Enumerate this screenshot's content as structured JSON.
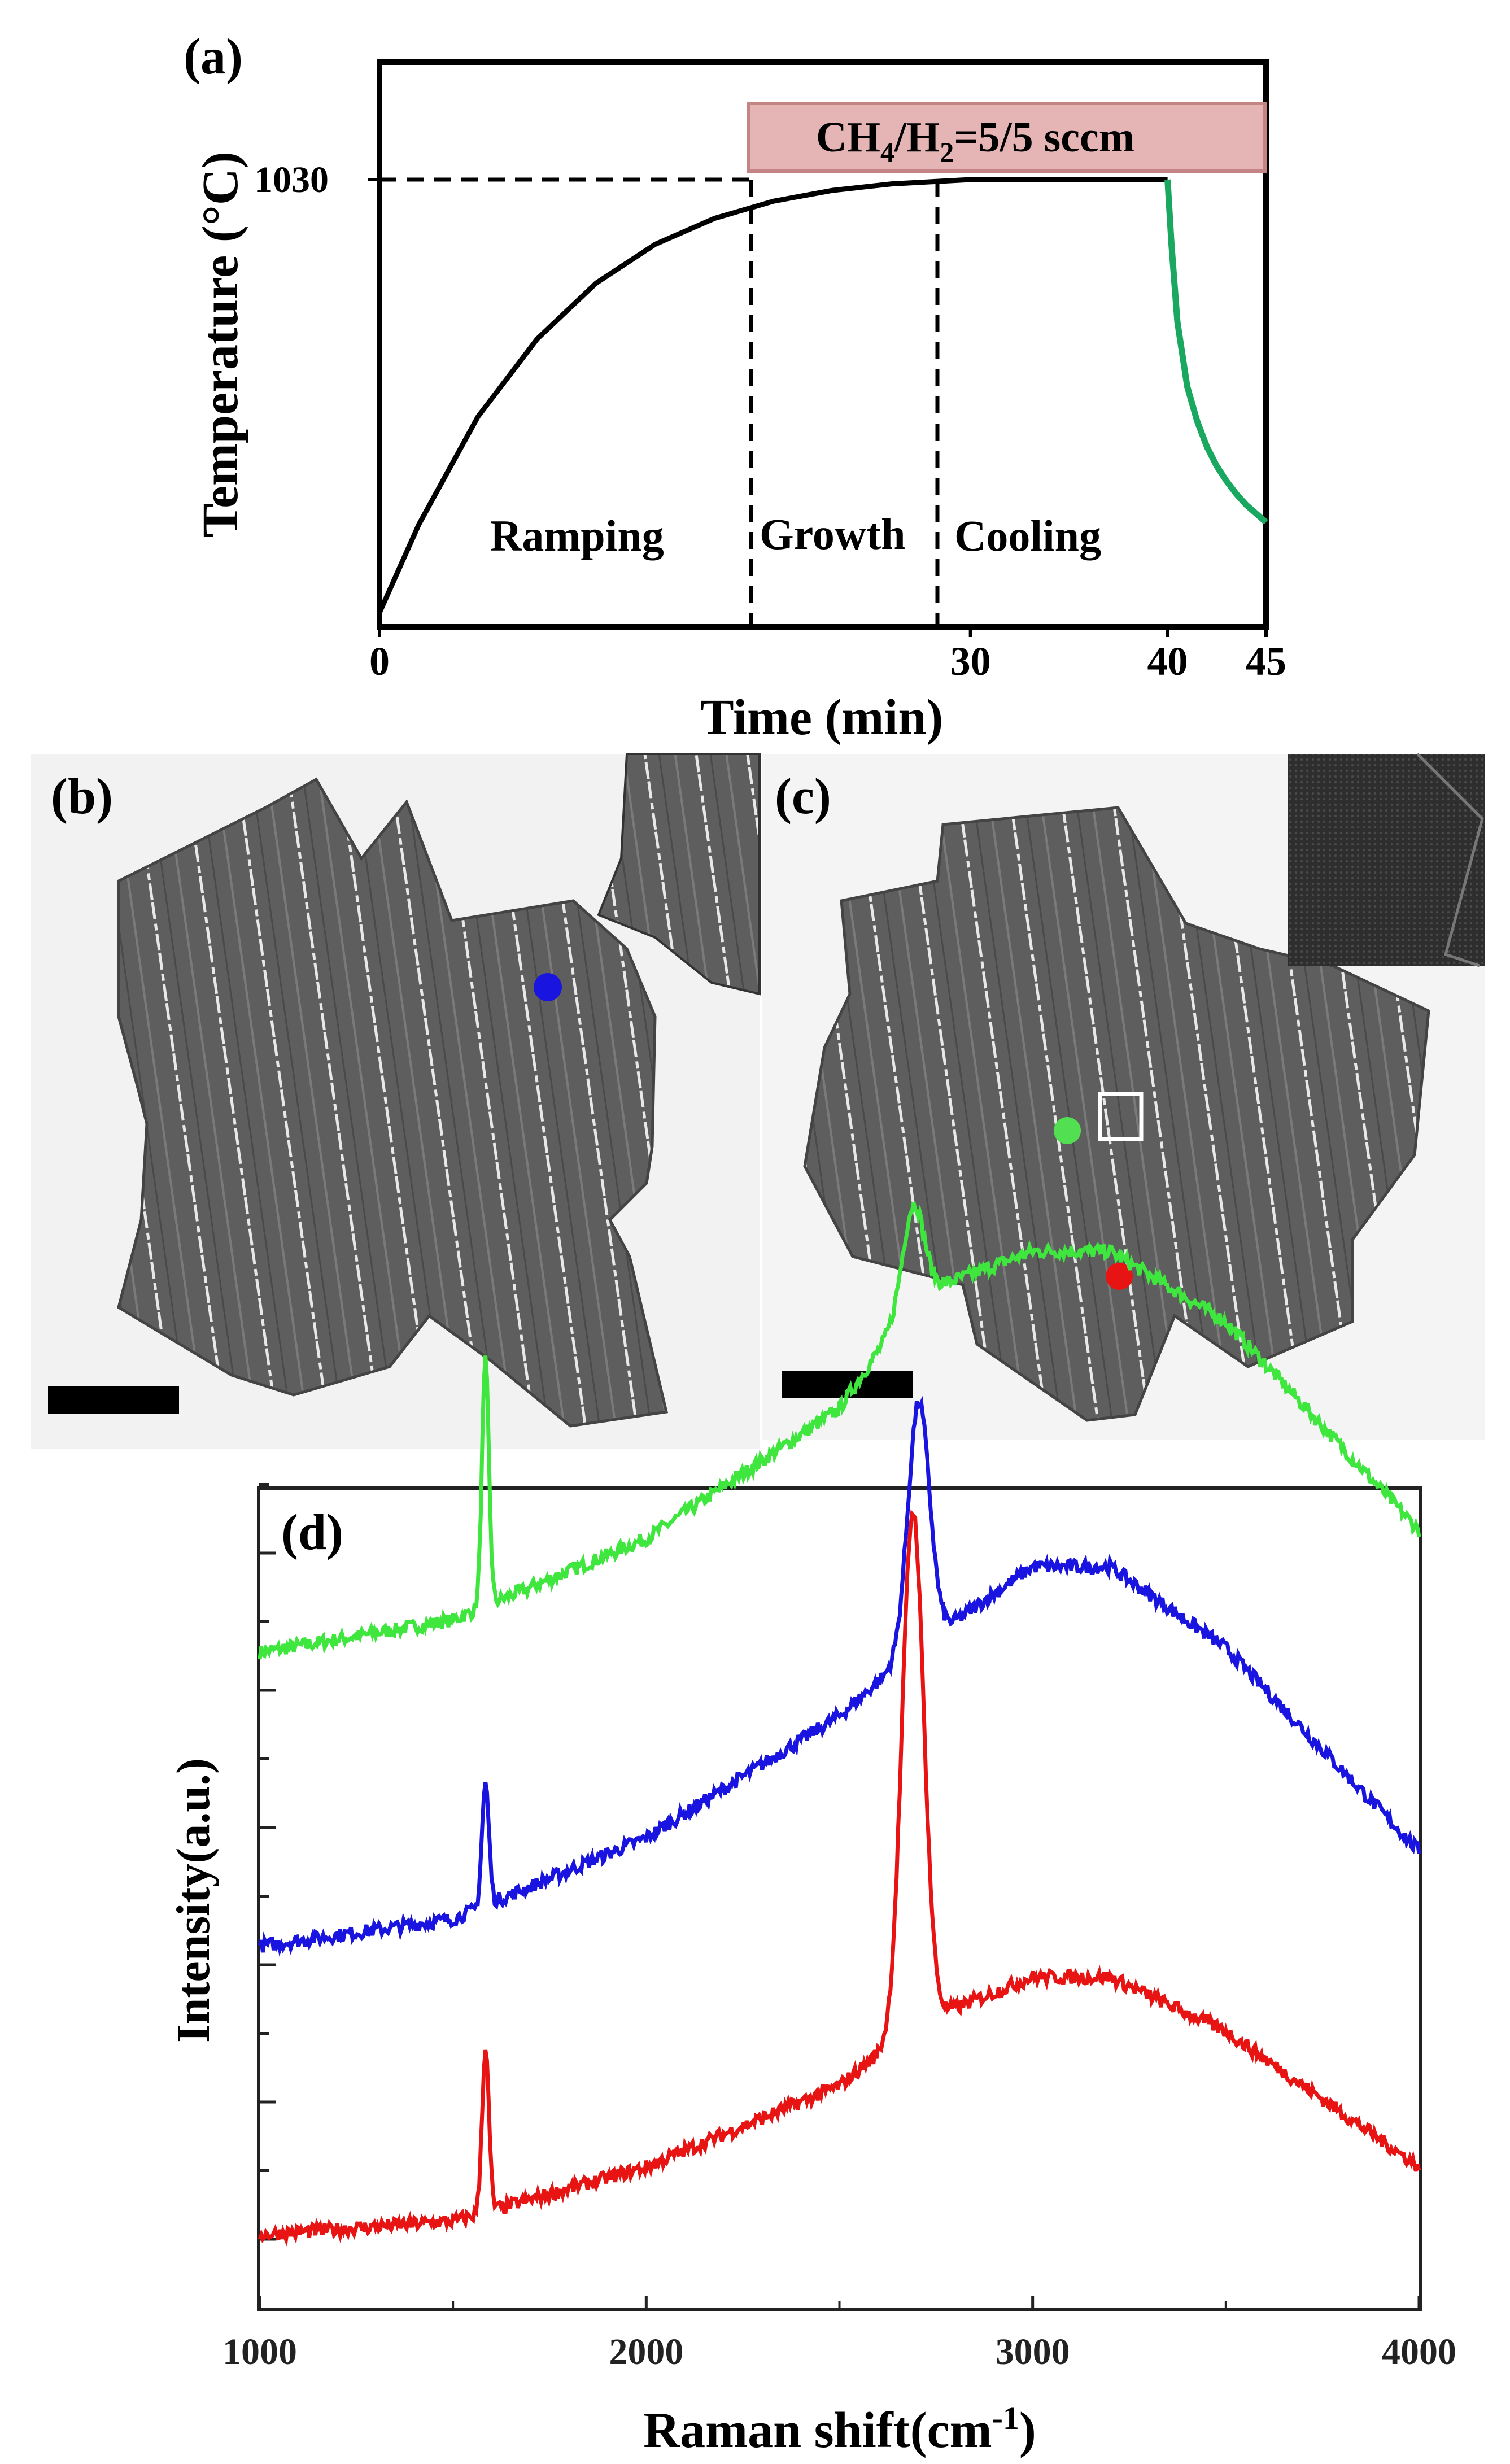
{
  "panel_a": {
    "label": "(a)",
    "gas_box": "CH4/H2=5/5 sccm",
    "gas_box_parts": {
      "a": "CH",
      "b": "4",
      "c": "/H",
      "d": "2",
      "e": "=5/5 sccm"
    },
    "temperature_label": "1030",
    "ylabel": "Temperature (°C)",
    "xlabel": "Time (min)",
    "phases": [
      "Ramping",
      "Growth",
      "Cooling"
    ],
    "xticks": [
      "0",
      "30",
      "40",
      "45"
    ]
  },
  "panel_b": {
    "label": "(b)"
  },
  "panel_c": {
    "label": "(c)"
  },
  "panel_d": {
    "label": "(d)",
    "ylabel": "Intensity(a.u.)",
    "xlabel_main": "Raman shift(cm",
    "xlabel_sup": "-1",
    "xlabel_close": ")"
  },
  "colors": {
    "ramp": "#000000",
    "cooling": "#1aa860",
    "gas_box_fill": "#e5b4b4",
    "gas_box_stroke": "#c48484",
    "green_spectrum": "#3ee63e",
    "blue_spectrum": "#1a14e0",
    "red_spectrum": "#e81414"
  },
  "chart_data": [
    {
      "type": "line",
      "title": "(a)",
      "xlabel": "Time (min)",
      "ylabel": "Temperature (°C)",
      "xlim": [
        0,
        45
      ],
      "xticks": [
        0,
        30,
        40,
        45
      ],
      "yticks": [
        1030
      ],
      "annotations": [
        "Ramping",
        "Growth",
        "Cooling",
        "CH4/H2=5/5 sccm"
      ],
      "series": [
        {
          "name": "Ramping/Growth",
          "color": "#000000",
          "x": [
            0,
            2,
            5,
            8,
            11,
            14,
            17,
            20,
            23,
            26,
            30,
            40
          ],
          "y": [
            25,
            230,
            480,
            660,
            790,
            880,
            940,
            980,
            1005,
            1020,
            1030,
            1030
          ]
        },
        {
          "name": "Cooling",
          "color": "#1aa860",
          "x": [
            40,
            40.2,
            40.5,
            41,
            41.5,
            42,
            42.5,
            43,
            43.5,
            44,
            44.5,
            45
          ],
          "y": [
            1030,
            880,
            700,
            550,
            470,
            410,
            365,
            330,
            300,
            275,
            255,
            235
          ]
        }
      ]
    },
    {
      "type": "line",
      "title": "(d)",
      "xlabel": "Raman shift(cm-1)",
      "ylabel": "Intensity(a.u.)",
      "xlim": [
        1000,
        4000
      ],
      "xticks": [
        1000,
        2000,
        3000,
        4000
      ],
      "series": [
        {
          "name": "green point",
          "color": "#3ee63e",
          "peaks": [
            {
              "x": 1584,
              "height": 0.9
            },
            {
              "x": 2690,
              "height": 0.35
            }
          ],
          "baseline_x": [
            1000,
            1500,
            2000,
            2500,
            2700,
            3000,
            3200,
            3500,
            4000
          ],
          "baseline_y": [
            0.3,
            0.42,
            0.72,
            1.2,
            1.62,
            1.78,
            1.78,
            1.52,
            0.75
          ]
        },
        {
          "name": "blue point",
          "color": "#1a14e0",
          "peaks": [
            {
              "x": 1584,
              "height": 0.45
            },
            {
              "x": 2705,
              "height": 0.9
            }
          ],
          "baseline_x": [
            1000,
            1500,
            2000,
            2500,
            2700,
            3000,
            3200,
            3500,
            4000
          ],
          "baseline_y": [
            0.3,
            0.4,
            0.7,
            1.15,
            1.4,
            1.7,
            1.7,
            1.4,
            0.65
          ]
        },
        {
          "name": "red point",
          "color": "#e81414",
          "peaks": [
            {
              "x": 1584,
              "height": 0.6
            },
            {
              "x": 2690,
              "height": 1.9
            }
          ],
          "baseline_x": [
            1000,
            1500,
            2000,
            2500,
            2700,
            3000,
            3200,
            3500,
            4000
          ],
          "baseline_y": [
            0.1,
            0.15,
            0.35,
            0.65,
            0.88,
            1.05,
            1.05,
            0.85,
            0.35
          ]
        }
      ]
    }
  ]
}
